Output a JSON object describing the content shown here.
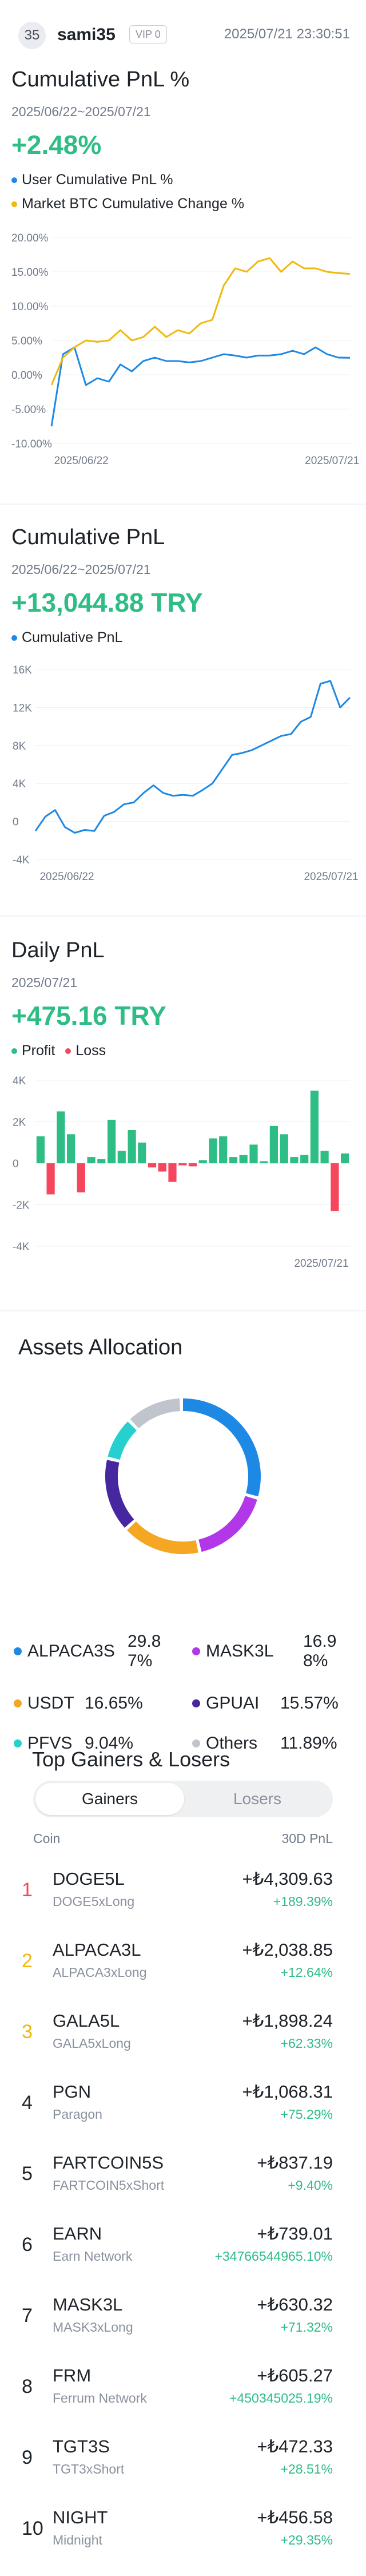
{
  "header": {
    "avatar_text": "35",
    "username": "sami35",
    "vip": "VIP 0",
    "timestamp": "2025/07/21 23:30:51"
  },
  "cum_pct": {
    "title": "Cumulative PnL %",
    "date_range": "2025/06/22~2025/07/21",
    "value": "+2.48%",
    "legend": [
      {
        "label": "User Cumulative PnL %",
        "color": "#1e88e5"
      },
      {
        "label": "Market BTC Cumulative Change %",
        "color": "#f0b90b"
      }
    ]
  },
  "cum_try": {
    "title": "Cumulative PnL",
    "date_range": "2025/06/22~2025/07/21",
    "value": "+13,044.88 TRY",
    "legend": [
      {
        "label": "Cumulative PnL",
        "color": "#1e88e5"
      }
    ]
  },
  "daily": {
    "title": "Daily PnL",
    "date": "2025/07/21",
    "value": "+475.16 TRY",
    "legend": [
      {
        "label": "Profit",
        "color": "#2ebd85"
      },
      {
        "label": "Loss",
        "color": "#f6465d"
      }
    ]
  },
  "assets": {
    "title": "Assets Allocation",
    "items": [
      {
        "label": "ALPACA3S",
        "pct": "29.87%",
        "color": "#1e88e5"
      },
      {
        "label": "MASK3L",
        "pct": "16.98%",
        "color": "#b237e8"
      },
      {
        "label": "USDT",
        "pct": "16.65%",
        "color": "#f5a623"
      },
      {
        "label": "GPUAI",
        "pct": "15.57%",
        "color": "#4527a0"
      },
      {
        "label": "PFVS",
        "pct": "9.04%",
        "color": "#26d0ce"
      },
      {
        "label": "Others",
        "pct": "11.89%",
        "color": "#c0c4cc"
      }
    ]
  },
  "gainers": {
    "title": "Top Gainers & Losers",
    "tab_gainers": "Gainers",
    "tab_losers": "Losers",
    "col_coin": "Coin",
    "col_pnl": "30D PnL",
    "rows": [
      {
        "rank": "1",
        "symbol": "DOGE5L",
        "name": "DOGE5xLong",
        "pnl": "+₺4,309.63",
        "pct": "+189.39%",
        "rank_color": "#f6465d"
      },
      {
        "rank": "2",
        "symbol": "ALPACA3L",
        "name": "ALPACA3xLong",
        "pnl": "+₺2,038.85",
        "pct": "+12.64%",
        "rank_color": "#f0b90b"
      },
      {
        "rank": "3",
        "symbol": "GALA5L",
        "name": "GALA5xLong",
        "pnl": "+₺1,898.24",
        "pct": "+62.33%",
        "rank_color": "#f0b90b"
      },
      {
        "rank": "4",
        "symbol": "PGN",
        "name": "Paragon",
        "pnl": "+₺1,068.31",
        "pct": "+75.29%",
        "rank_color": "#1e2329"
      },
      {
        "rank": "5",
        "symbol": "FARTCOIN5S",
        "name": "FARTCOIN5xShort",
        "pnl": "+₺837.19",
        "pct": "+9.40%",
        "rank_color": "#1e2329"
      },
      {
        "rank": "6",
        "symbol": "EARN",
        "name": "Earn Network",
        "pnl": "+₺739.01",
        "pct": "+34766544965.10%",
        "rank_color": "#1e2329"
      },
      {
        "rank": "7",
        "symbol": "MASK3L",
        "name": "MASK3xLong",
        "pnl": "+₺630.32",
        "pct": "+71.32%",
        "rank_color": "#1e2329"
      },
      {
        "rank": "8",
        "symbol": "FRM",
        "name": "Ferrum Network",
        "pnl": "+₺605.27",
        "pct": "+450345025.19%",
        "rank_color": "#1e2329"
      },
      {
        "rank": "9",
        "symbol": "TGT3S",
        "name": "TGT3xShort",
        "pnl": "+₺472.33",
        "pct": "+28.51%",
        "rank_color": "#1e2329"
      },
      {
        "rank": "10",
        "symbol": "NIGHT",
        "name": "Midnight",
        "pnl": "+₺456.58",
        "pct": "+29.35%",
        "rank_color": "#1e2329"
      }
    ]
  },
  "chart_data": [
    {
      "type": "line",
      "ylim": [
        -10,
        20
      ],
      "y_ticks": [
        "20.00%",
        "15.00%",
        "10.00%",
        "5.00%",
        "0.00%",
        "-5.00%",
        "-10.00%"
      ],
      "x_ticks": [
        "2025/06/22",
        "2025/07/21"
      ],
      "series": [
        {
          "name": "User Cumulative PnL %",
          "color": "#1e88e5",
          "values": [
            -7.5,
            3,
            4,
            -1.5,
            -0.5,
            -1,
            1.5,
            0.5,
            2,
            2.5,
            2,
            2,
            1.8,
            2,
            2.5,
            3,
            2.8,
            2.5,
            2.8,
            2.8,
            3,
            3.5,
            3,
            4,
            3,
            2.5,
            2.48
          ]
        },
        {
          "name": "Market BTC Cumulative Change %",
          "color": "#f0b90b",
          "values": [
            -1.5,
            2.5,
            4,
            5,
            4.8,
            5,
            6.5,
            5,
            5.5,
            7,
            5.5,
            6.5,
            6,
            7.5,
            8,
            13,
            15.5,
            15,
            16.5,
            17,
            15,
            16.5,
            15.5,
            15.5,
            15,
            14.8,
            14.7
          ]
        }
      ]
    },
    {
      "type": "line",
      "ylim": [
        -4000,
        16000
      ],
      "y_ticks": [
        "16K",
        "12K",
        "8K",
        "4K",
        "0",
        "-4K"
      ],
      "x_ticks": [
        "2025/06/22",
        "2025/07/21"
      ],
      "series": [
        {
          "name": "Cumulative PnL",
          "color": "#1e88e5",
          "values": [
            -1000,
            500,
            1200,
            -600,
            -1200,
            -900,
            -1000,
            600,
            1000,
            1800,
            2000,
            3000,
            3800,
            3000,
            2700,
            2800,
            2700,
            3300,
            4000,
            5500,
            7000,
            7200,
            7500,
            8000,
            8500,
            9000,
            9200,
            10500,
            11000,
            14500,
            14800,
            12000,
            13044.88
          ]
        }
      ]
    },
    {
      "type": "bar",
      "ylim": [
        -4000,
        4000
      ],
      "y_ticks": [
        "4K",
        "2K",
        "0",
        "-2K",
        "-4K"
      ],
      "x_ticks": [
        "2025/07/21"
      ],
      "series": [
        {
          "name": "Daily PnL",
          "values": [
            1300,
            -1500,
            2500,
            1400,
            -1400,
            300,
            200,
            2100,
            600,
            1600,
            1000,
            -200,
            -400,
            -900,
            -100,
            -150,
            150,
            1200,
            1300,
            300,
            400,
            900,
            100,
            1800,
            1400,
            300,
            400,
            3500,
            600,
            -2300,
            475.16
          ]
        }
      ]
    }
  ]
}
